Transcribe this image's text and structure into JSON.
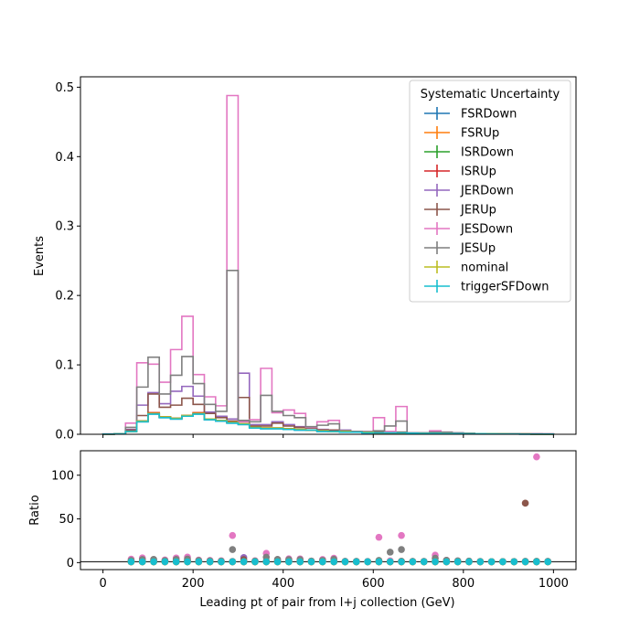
{
  "chart_data": {
    "type": "step",
    "xlabel": "Leading pt of pair from l+j collection (GeV)",
    "ylabel": "Events",
    "ratio_ylabel": "Ratio",
    "xlim": [
      -50,
      1050
    ],
    "ylim": [
      0,
      0.515
    ],
    "ratio_ylim": [
      -8,
      128
    ],
    "x_ticks": [
      0,
      200,
      400,
      600,
      800,
      1000
    ],
    "y_ticks": [
      0.0,
      0.1,
      0.2,
      0.3,
      0.4,
      0.5
    ],
    "ratio_y_ticks": [
      0,
      50,
      100
    ],
    "bin_edges": [
      0,
      25,
      50,
      75,
      100,
      125,
      150,
      175,
      200,
      225,
      250,
      275,
      300,
      325,
      350,
      375,
      400,
      425,
      450,
      475,
      500,
      525,
      550,
      575,
      600,
      625,
      650,
      675,
      700,
      725,
      750,
      775,
      800,
      825,
      850,
      875,
      900,
      925,
      950,
      975,
      1000
    ],
    "legend": {
      "title": "Systematic Uncertainty",
      "position": "upper-right"
    },
    "grid": false,
    "series": [
      {
        "name": "FSRDown",
        "color": "#1f77b4",
        "values": [
          0.0003,
          0.0006,
          0.004,
          0.018,
          0.029,
          0.024,
          0.022,
          0.026,
          0.029,
          0.021,
          0.019,
          0.016,
          0.014,
          0.009,
          0.008,
          0.008,
          0.007,
          0.006,
          0.006,
          0.004,
          0.004,
          0.003,
          0.003,
          0.002,
          0.002,
          0.002,
          0.002,
          0.0015,
          0.0013,
          0.0012,
          0.001,
          0.0009,
          0.0008,
          0.0007,
          0.0006,
          0.0005,
          0.0004,
          0.0003,
          0.0003,
          0.0002
        ],
        "ratio": [
          null,
          null,
          1,
          1,
          1,
          1,
          1,
          1,
          1,
          1,
          1,
          1,
          1,
          1,
          1,
          1,
          1,
          1,
          1,
          1,
          1,
          1,
          1,
          1,
          1,
          1,
          1,
          1,
          1,
          1,
          1,
          1,
          1,
          1,
          1,
          1,
          1,
          1,
          1,
          1
        ]
      },
      {
        "name": "FSRUp",
        "color": "#ff7f0e",
        "values": [
          0.0003,
          0.0006,
          0.004,
          0.019,
          0.031,
          0.025,
          0.023,
          0.027,
          0.031,
          0.022,
          0.02,
          0.017,
          0.015,
          0.01,
          0.009,
          0.009,
          0.008,
          0.007,
          0.006,
          0.005,
          0.004,
          0.004,
          0.003,
          0.003,
          0.002,
          0.002,
          0.002,
          0.0016,
          0.0014,
          0.0013,
          0.0011,
          0.001,
          0.0009,
          0.0008,
          0.0007,
          0.0006,
          0.0005,
          0.0004,
          0.0003,
          0.0003
        ],
        "ratio": [
          null,
          null,
          1,
          1,
          1,
          1,
          1,
          1,
          1,
          1,
          1,
          1,
          1,
          1,
          1,
          1,
          1,
          1,
          1,
          1,
          1,
          1,
          1,
          1,
          1,
          1,
          1,
          1,
          1,
          1,
          1,
          1,
          1,
          1,
          1,
          1,
          1,
          1,
          1,
          1
        ]
      },
      {
        "name": "ISRDown",
        "color": "#2ca02c",
        "values": [
          0.0003,
          0.0006,
          0.004,
          0.019,
          0.03,
          0.025,
          0.023,
          0.027,
          0.03,
          0.022,
          0.02,
          0.017,
          0.015,
          0.01,
          0.009,
          0.009,
          0.008,
          0.007,
          0.006,
          0.005,
          0.004,
          0.004,
          0.003,
          0.003,
          0.002,
          0.002,
          0.002,
          0.0016,
          0.0014,
          0.0013,
          0.0011,
          0.001,
          0.0009,
          0.0008,
          0.0007,
          0.0006,
          0.0005,
          0.0004,
          0.0003,
          0.0003
        ],
        "ratio": [
          null,
          null,
          1,
          1,
          1,
          1,
          1,
          1,
          1,
          1,
          1,
          1,
          1,
          1,
          1,
          1,
          1,
          1,
          1,
          1,
          1,
          1,
          1,
          1,
          1,
          1,
          1,
          1,
          1,
          1,
          1,
          1,
          1,
          1,
          1,
          1,
          1,
          1,
          1,
          1
        ]
      },
      {
        "name": "ISRUp",
        "color": "#d62728",
        "values": [
          0.0003,
          0.0006,
          0.004,
          0.019,
          0.031,
          0.025,
          0.023,
          0.027,
          0.031,
          0.022,
          0.02,
          0.017,
          0.015,
          0.01,
          0.009,
          0.009,
          0.008,
          0.007,
          0.006,
          0.005,
          0.004,
          0.004,
          0.003,
          0.003,
          0.002,
          0.002,
          0.002,
          0.0016,
          0.0014,
          0.0013,
          0.0011,
          0.001,
          0.0009,
          0.0008,
          0.0007,
          0.0006,
          0.0005,
          0.0004,
          0.0003,
          0.0003
        ],
        "ratio": [
          null,
          null,
          1,
          1,
          1,
          1,
          1,
          1,
          1,
          1,
          1,
          1,
          1,
          1,
          1,
          1,
          1,
          1,
          1,
          1,
          1,
          1,
          1,
          1,
          1,
          1,
          1,
          1,
          1,
          1,
          1,
          1,
          1,
          1,
          1,
          1,
          1,
          1,
          1,
          1
        ]
      },
      {
        "name": "JERDown",
        "color": "#9467bd",
        "values": [
          0.0003,
          0.0008,
          0.007,
          0.042,
          0.06,
          0.044,
          0.062,
          0.069,
          0.055,
          0.032,
          0.026,
          0.022,
          0.088,
          0.014,
          0.014,
          0.018,
          0.014,
          0.011,
          0.01,
          0.007,
          0.006,
          0.006,
          0.004,
          0.004,
          0.003,
          0.003,
          0.003,
          0.002,
          0.0018,
          0.0015,
          0.0013,
          0.0011,
          0.001,
          0.0009,
          0.0008,
          0.0007,
          0.0006,
          0.0005,
          0.0004,
          0.0004
        ],
        "ratio": [
          null,
          null,
          1.7,
          2.2,
          2.0,
          1.8,
          2.7,
          2.6,
          1.8,
          1.5,
          1.3,
          1.3,
          5.8,
          1.4,
          1.6,
          2.0,
          1.8,
          1.6,
          1.7,
          1.4,
          1.5,
          1.5,
          1.3,
          1.3,
          1.5,
          1.5,
          1.5,
          1.3,
          1.3,
          1.2,
          1.2,
          1.1,
          1.1,
          1.1,
          1.1,
          1.1,
          1.2,
          1.2,
          1.3,
          1.3
        ]
      },
      {
        "name": "JERUp",
        "color": "#8c564b",
        "values": [
          0.0003,
          0.0008,
          0.006,
          0.027,
          0.058,
          0.039,
          0.042,
          0.052,
          0.043,
          0.03,
          0.024,
          0.019,
          0.053,
          0.012,
          0.012,
          0.016,
          0.012,
          0.01,
          0.009,
          0.006,
          0.006,
          0.005,
          0.004,
          0.003,
          0.003,
          0.003,
          0.003,
          0.002,
          0.0017,
          0.0015,
          0.0013,
          0.0011,
          0.001,
          0.0009,
          0.0008,
          0.0007,
          0.0006,
          0.0005,
          0.0004,
          0.0004
        ],
        "ratio": [
          null,
          null,
          1.5,
          1.4,
          1.9,
          1.6,
          1.8,
          1.9,
          1.4,
          1.4,
          1.2,
          1.1,
          3.5,
          1.2,
          1.3,
          1.8,
          1.5,
          1.4,
          1.5,
          1.2,
          1.5,
          1.3,
          1.3,
          1.0,
          1.5,
          1.5,
          1.5,
          1.3,
          1.2,
          1.2,
          1.2,
          1.1,
          1.1,
          1.1,
          1.1,
          1.1,
          1.2,
          68,
          1.3,
          1.3
        ]
      },
      {
        "name": "JESDown",
        "color": "#e377c2",
        "values": [
          0.0004,
          0.001,
          0.016,
          0.103,
          0.101,
          0.075,
          0.122,
          0.17,
          0.086,
          0.054,
          0.041,
          0.488,
          0.018,
          0.021,
          0.095,
          0.031,
          0.035,
          0.03,
          0.01,
          0.018,
          0.02,
          0.005,
          0.004,
          0.003,
          0.024,
          0.004,
          0.04,
          0.002,
          0.002,
          0.005,
          0.003,
          0.002,
          0.0015,
          0.001,
          0.0008,
          0.0007,
          0.0006,
          0.0006,
          0.0008,
          0.0004
        ],
        "ratio": [
          null,
          null,
          4.0,
          5.4,
          3.3,
          3.0,
          5.3,
          6.3,
          2.9,
          2.5,
          2.1,
          31,
          1.2,
          2.1,
          10.6,
          3.4,
          4.4,
          4.3,
          1.7,
          3.6,
          5.0,
          1.3,
          1.3,
          1.0,
          29,
          2.0,
          31,
          1.3,
          1.4,
          8.5,
          2.7,
          2.0,
          1.7,
          1.3,
          1.1,
          1.2,
          1.2,
          1.5,
          121,
          1.3
        ]
      },
      {
        "name": "JESUp",
        "color": "#7f7f7f",
        "values": [
          0.0004,
          0.001,
          0.01,
          0.068,
          0.111,
          0.058,
          0.085,
          0.112,
          0.073,
          0.043,
          0.033,
          0.236,
          0.02,
          0.018,
          0.056,
          0.033,
          0.027,
          0.024,
          0.011,
          0.013,
          0.015,
          0.005,
          0.004,
          0.003,
          0.005,
          0.012,
          0.019,
          0.002,
          0.002,
          0.003,
          0.003,
          0.002,
          0.0015,
          0.001,
          0.0008,
          0.0007,
          0.0006,
          0.0006,
          0.0006,
          0.0004
        ],
        "ratio": [
          null,
          null,
          2.5,
          3.6,
          3.7,
          2.3,
          3.7,
          4.1,
          2.4,
          2.0,
          1.7,
          15,
          1.3,
          1.8,
          6.2,
          3.7,
          3.4,
          3.4,
          1.8,
          2.6,
          3.8,
          1.3,
          1.3,
          1.0,
          2.5,
          12,
          15,
          1.3,
          1.4,
          5.0,
          2.7,
          2.0,
          1.7,
          1.3,
          1.1,
          1.2,
          1.2,
          1.5,
          1.5,
          1.3
        ]
      },
      {
        "name": "nominal",
        "color": "#bcbd22",
        "values": [
          0.0003,
          0.0006,
          0.004,
          0.019,
          0.03,
          0.025,
          0.023,
          0.027,
          0.03,
          0.022,
          0.02,
          0.017,
          0.015,
          0.01,
          0.009,
          0.009,
          0.008,
          0.007,
          0.006,
          0.005,
          0.004,
          0.004,
          0.003,
          0.003,
          0.002,
          0.002,
          0.002,
          0.0016,
          0.0014,
          0.0013,
          0.0011,
          0.001,
          0.0009,
          0.0008,
          0.0007,
          0.0006,
          0.0005,
          0.0004,
          0.0003,
          0.0003
        ],
        "ratio": [
          null,
          null,
          1,
          1,
          1,
          1,
          1,
          1,
          1,
          1,
          1,
          1,
          1,
          1,
          1,
          1,
          1,
          1,
          1,
          1,
          1,
          1,
          1,
          1,
          1,
          1,
          1,
          1,
          1,
          1,
          1,
          1,
          1,
          1,
          1,
          1,
          1,
          1,
          1,
          1
        ]
      },
      {
        "name": "triggerSFDown",
        "color": "#17becf",
        "values": [
          0.0003,
          0.0006,
          0.004,
          0.018,
          0.029,
          0.024,
          0.022,
          0.026,
          0.029,
          0.021,
          0.019,
          0.016,
          0.014,
          0.009,
          0.008,
          0.008,
          0.007,
          0.006,
          0.006,
          0.004,
          0.004,
          0.003,
          0.003,
          0.002,
          0.002,
          0.002,
          0.002,
          0.0015,
          0.0013,
          0.0012,
          0.001,
          0.0009,
          0.0008,
          0.0007,
          0.0006,
          0.0005,
          0.0004,
          0.0003,
          0.0003,
          0.0002
        ],
        "ratio": [
          null,
          null,
          1,
          1,
          1,
          1,
          1,
          1,
          1,
          1,
          1,
          1,
          1,
          1,
          1,
          1,
          1,
          1,
          1,
          1,
          1,
          1,
          1,
          1,
          1,
          1,
          1,
          1,
          1,
          1,
          1,
          1,
          1,
          1,
          1,
          1,
          1,
          1,
          1,
          1
        ]
      }
    ]
  }
}
